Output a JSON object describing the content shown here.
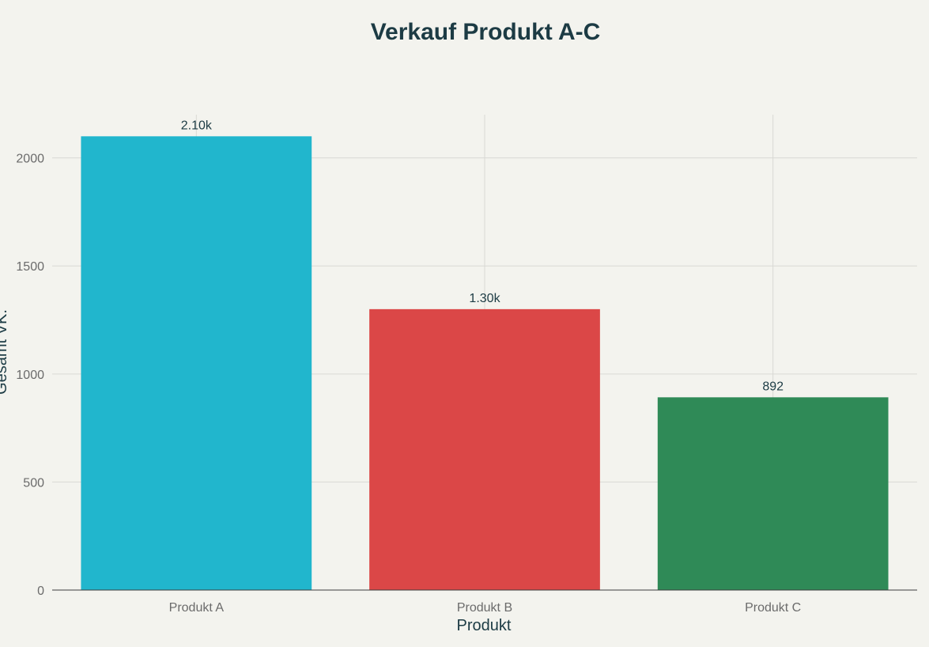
{
  "chart_data": {
    "type": "bar",
    "title": "Verkauf Produkt A-C",
    "xlabel": "Produkt",
    "ylabel": "Gesamt VK.",
    "categories": [
      "Produkt A",
      "Produkt B",
      "Produkt C"
    ],
    "values": [
      2100,
      1300,
      892
    ],
    "data_labels": [
      "2.10k",
      "1.30k",
      "892"
    ],
    "colors": [
      "#21b6cd",
      "#db4747",
      "#2f8a57"
    ],
    "ylim": [
      0,
      2200
    ],
    "yticks": [
      0,
      500,
      1000,
      1500,
      2000
    ],
    "ytick_labels": [
      "0",
      "500",
      "1000",
      "1500",
      "2000"
    ],
    "grid": true,
    "legend": "none",
    "background": "#f3f3ee"
  }
}
